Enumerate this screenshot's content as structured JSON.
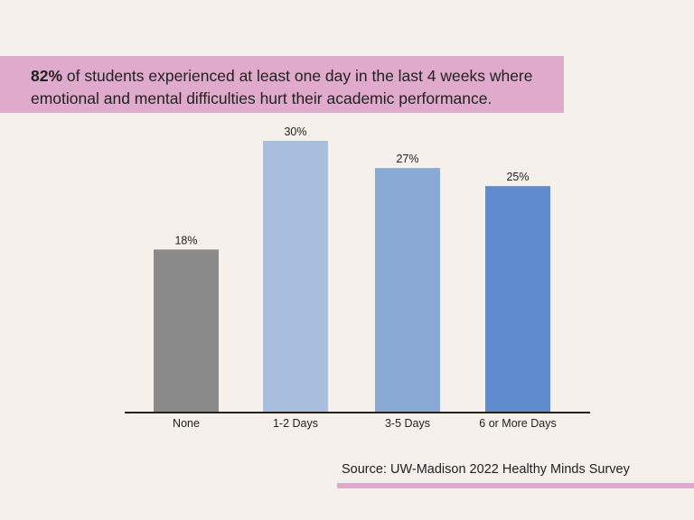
{
  "headline": {
    "highlight": "82%",
    "text": " of students experienced at least one day in the last 4 weeks where",
    "text_line2": "emotional and mental difficulties hurt their academic performance."
  },
  "source": "Source: UW-Madison 2022 Healthy Minds Survey",
  "chart_data": {
    "type": "bar",
    "title": "",
    "xlabel": "",
    "ylabel": "",
    "categories": [
      "None",
      "1-2 Days",
      "3-5 Days",
      "6 or More Days"
    ],
    "values": [
      18,
      30,
      27,
      25
    ],
    "data_labels": [
      "18%",
      "30%",
      "27%",
      "25%"
    ],
    "unit": "%",
    "ylim": [
      0,
      30
    ],
    "grid": false,
    "colors": [
      "#8a8a8a",
      "#a9bddd",
      "#8aaad6",
      "#5f8bcd"
    ]
  }
}
